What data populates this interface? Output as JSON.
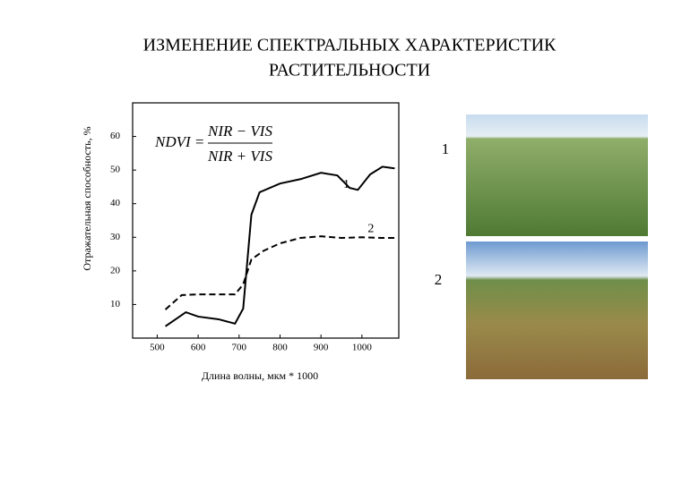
{
  "slide_title": [
    "ИЗМЕНЕНИЕ СПЕКТРАЛЬНЫХ ХАРАКТЕРИСТИК",
    "РАСТИТЕЛЬНОСТИ"
  ],
  "formula": {
    "lhs": "NDVI =",
    "numerator": "NIR − VIS",
    "denominator": "NIR + VIS"
  },
  "photos": [
    {
      "label": "1"
    },
    {
      "label": "2"
    }
  ],
  "chart_data": {
    "type": "line",
    "x_label": "Длина волны, мкм * 1000",
    "y_label": "Отражательная способность, %",
    "xlim": [
      440,
      1090
    ],
    "ylim": [
      0,
      70
    ],
    "xticks": [
      500,
      600,
      700,
      800,
      900,
      1000
    ],
    "yticks": [
      10,
      20,
      30,
      40,
      50,
      60
    ],
    "grid": false,
    "series": [
      {
        "name": "1",
        "color": "#000000",
        "dash": false,
        "x": [
          520,
          570,
          600,
          650,
          690,
          710,
          730,
          750,
          800,
          850,
          900,
          940,
          970,
          990,
          1020,
          1050,
          1080
        ],
        "values": [
          3.5,
          7.7,
          6.4,
          5.6,
          4.3,
          8.8,
          36.7,
          43.4,
          46,
          47.3,
          49.2,
          48.4,
          44.7,
          44.1,
          48.7,
          51,
          50.5
        ]
      },
      {
        "name": "2",
        "color": "#000000",
        "dash": true,
        "x": [
          520,
          560,
          600,
          690,
          710,
          730,
          760,
          800,
          850,
          900,
          950,
          1000,
          1050,
          1080
        ],
        "values": [
          8.5,
          12.8,
          13,
          13,
          16,
          23.4,
          26,
          28.2,
          29.8,
          30.3,
          29.8,
          30,
          29.8,
          29.8
        ]
      }
    ]
  }
}
